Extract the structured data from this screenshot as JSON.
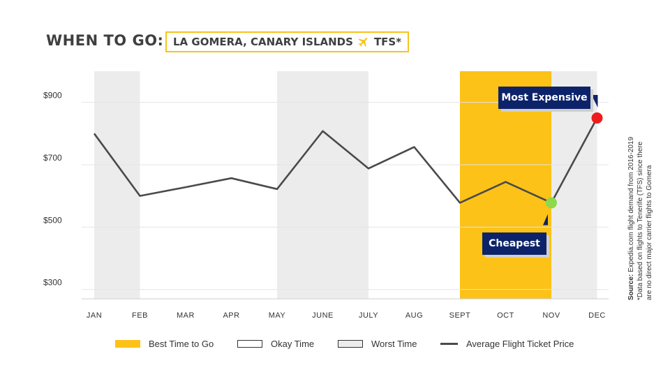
{
  "header": {
    "title": "WHEN TO GO:",
    "subtitle": "LA GOMERA, CANARY ISLANDS",
    "airport_code": "TFS*",
    "plane_icon": "airplane-icon",
    "accent_color": "#f7c31c"
  },
  "chart_data": {
    "type": "line",
    "categories": [
      "JAN",
      "FEB",
      "MAR",
      "APR",
      "MAY",
      "JUNE",
      "JULY",
      "AUG",
      "SEPT",
      "OCT",
      "NOV",
      "DEC"
    ],
    "series": [
      {
        "name": "Average Flight Ticket Price",
        "values": [
          800,
          600,
          628,
          657,
          622,
          808,
          688,
          757,
          578,
          645,
          578,
          850
        ],
        "color": "#4a4a4a"
      }
    ],
    "y_ticks": [
      {
        "value": 900,
        "label": "$900"
      },
      {
        "value": 700,
        "label": "$700"
      },
      {
        "value": 500,
        "label": "$500"
      },
      {
        "value": 300,
        "label": "$300"
      }
    ],
    "ylim": [
      270,
      1000
    ],
    "month_periods": [
      "worst",
      "okay",
      "okay",
      "okay",
      "worst",
      "worst",
      "okay",
      "okay",
      "best",
      "best",
      "worst",
      "worst"
    ],
    "period_colors": {
      "best": "#fcc217",
      "okay": "#ffffff",
      "worst": "#ececec"
    },
    "annotations": [
      {
        "label": "Most Expensive",
        "month_index": 11,
        "value": 850,
        "dot_color": "#ee1c1c"
      },
      {
        "label": "Cheapest",
        "month_index": 10,
        "value": 578,
        "dot_color": "#8ed84a"
      }
    ],
    "grid": true
  },
  "legend": [
    {
      "label": "Best Time to Go",
      "kind": "best"
    },
    {
      "label": "Okay Time",
      "kind": "okay"
    },
    {
      "label": "Worst Time",
      "kind": "worst"
    },
    {
      "label": "Average Flight Ticket Price",
      "kind": "line"
    }
  ],
  "source": {
    "label": "Source:",
    "text": " Expedia.com flight demand from 2016-2019",
    "note_line1": "*Data based on flights to Tenerife (TFS) since there",
    "note_line2": "are no direct major carrier flights to Gomera"
  }
}
